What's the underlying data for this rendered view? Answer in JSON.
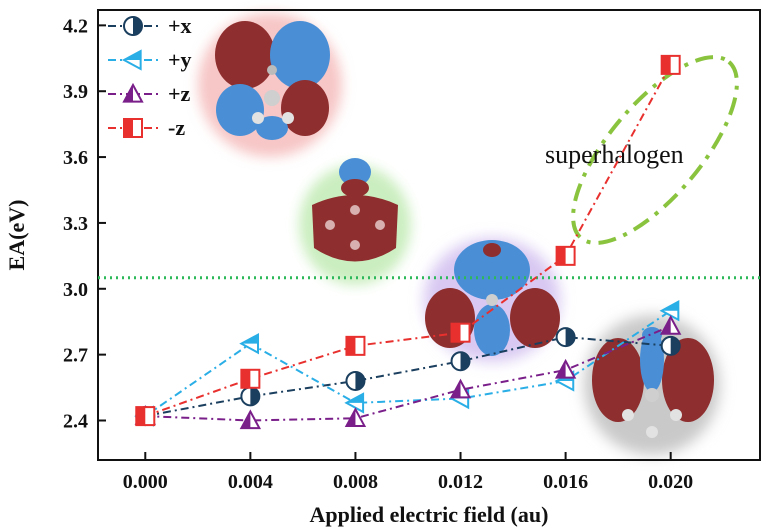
{
  "chart_data": {
    "type": "line",
    "title": "",
    "xlabel": "Applied electric field (au)",
    "ylabel": "EA(eV)",
    "x": [
      0.0,
      0.004,
      0.008,
      0.012,
      0.016,
      0.02
    ],
    "x_tick_labels": [
      "0.000",
      "0.004",
      "0.008",
      "0.012",
      "0.016",
      "0.020"
    ],
    "y_tick_labels": [
      "2.4",
      "2.7",
      "3.0",
      "3.3",
      "3.6",
      "3.9",
      "4.2"
    ],
    "xlim": [
      -0.0018,
      0.0234
    ],
    "ylim": [
      2.22,
      4.27
    ],
    "reference_line": {
      "y": 3.05,
      "color": "#2db85a",
      "style": "dotted"
    },
    "annotation": "superhalogen",
    "legend_position": "top-left",
    "series": [
      {
        "name": "+x",
        "color": "#1b3f5e",
        "marker": "circle-half",
        "values": [
          2.42,
          2.51,
          2.58,
          2.67,
          2.78,
          2.74
        ]
      },
      {
        "name": "+y",
        "color": "#2aaee6",
        "marker": "triangle-left",
        "values": [
          2.42,
          2.75,
          2.48,
          2.5,
          2.58,
          2.9
        ]
      },
      {
        "name": "+z",
        "color": "#7a1f8a",
        "marker": "triangle-up",
        "values": [
          2.42,
          2.4,
          2.41,
          2.54,
          2.63,
          2.83
        ]
      },
      {
        "name": "-z",
        "color": "#e8302e",
        "marker": "square-half",
        "values": [
          2.42,
          2.59,
          2.74,
          2.8,
          3.15,
          4.02
        ]
      }
    ]
  }
}
